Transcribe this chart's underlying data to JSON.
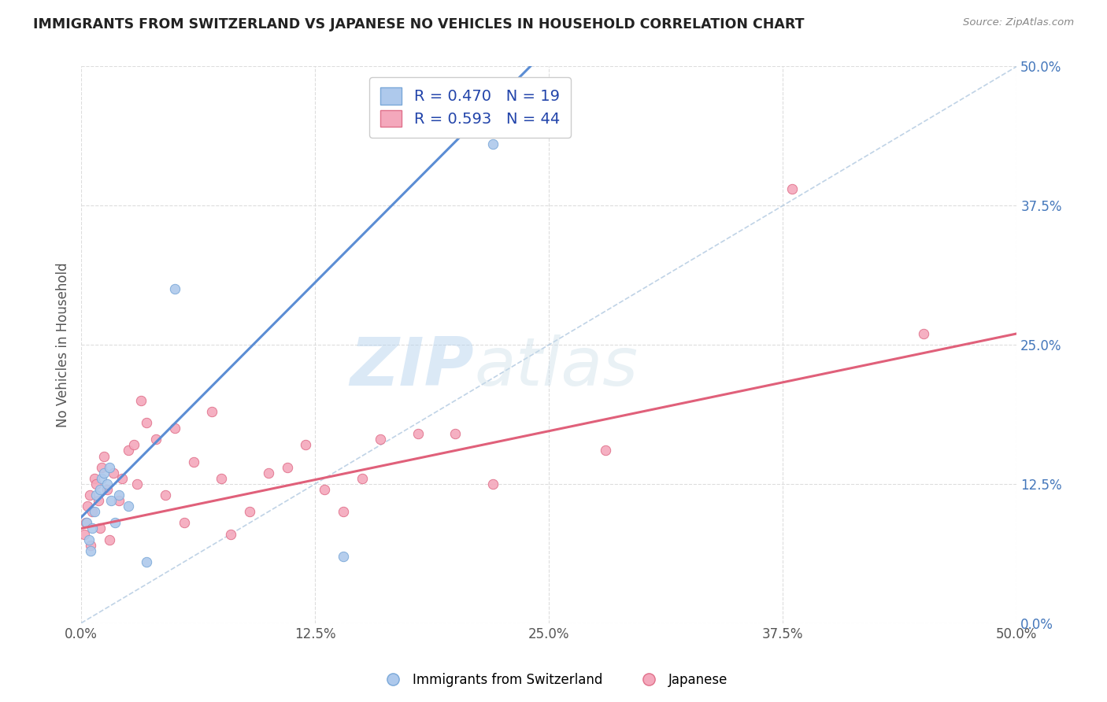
{
  "title": "IMMIGRANTS FROM SWITZERLAND VS JAPANESE NO VEHICLES IN HOUSEHOLD CORRELATION CHART",
  "source": "Source: ZipAtlas.com",
  "ylabel": "No Vehicles in Household",
  "legend_swiss_r": "R = 0.470",
  "legend_swiss_n": "N = 19",
  "legend_japanese_r": "R = 0.593",
  "legend_japanese_n": "N = 44",
  "switzerland_fill": "#aec9ec",
  "switzerland_edge": "#7aa8d8",
  "japanese_fill": "#f4a8bc",
  "japanese_edge": "#e0708a",
  "trendline_swiss_color": "#5b8dd4",
  "trendline_japanese_color": "#e0607a",
  "diagonal_color": "#b0c8e0",
  "swiss_x": [
    0.3,
    0.4,
    0.5,
    0.6,
    0.7,
    0.8,
    1.0,
    1.1,
    1.2,
    1.4,
    1.5,
    1.6,
    1.8,
    2.0,
    2.5,
    3.5,
    5.0,
    14.0,
    22.0
  ],
  "swiss_y": [
    9.0,
    7.5,
    6.5,
    8.5,
    10.0,
    11.5,
    12.0,
    13.0,
    13.5,
    12.5,
    14.0,
    11.0,
    9.0,
    11.5,
    10.5,
    5.5,
    30.0,
    6.0,
    43.0
  ],
  "japanese_x": [
    0.15,
    0.25,
    0.35,
    0.45,
    0.5,
    0.6,
    0.7,
    0.8,
    0.9,
    1.0,
    1.1,
    1.2,
    1.4,
    1.5,
    1.7,
    2.0,
    2.2,
    2.5,
    2.8,
    3.0,
    3.2,
    3.5,
    4.0,
    4.5,
    5.0,
    5.5,
    6.0,
    7.0,
    7.5,
    8.0,
    9.0,
    10.0,
    11.0,
    12.0,
    13.0,
    14.0,
    15.0,
    16.0,
    18.0,
    20.0,
    22.0,
    28.0,
    38.0,
    45.0
  ],
  "japanese_y": [
    8.0,
    9.0,
    10.5,
    11.5,
    7.0,
    10.0,
    13.0,
    12.5,
    11.0,
    8.5,
    14.0,
    15.0,
    12.0,
    7.5,
    13.5,
    11.0,
    13.0,
    15.5,
    16.0,
    12.5,
    20.0,
    18.0,
    16.5,
    11.5,
    17.5,
    9.0,
    14.5,
    19.0,
    13.0,
    8.0,
    10.0,
    13.5,
    14.0,
    16.0,
    12.0,
    10.0,
    13.0,
    16.5,
    17.0,
    17.0,
    12.5,
    15.5,
    39.0,
    26.0
  ],
  "swiss_trend_x0": 0.0,
  "swiss_trend_y0": 9.5,
  "swiss_trend_x1": 24.0,
  "swiss_trend_y1": 50.0,
  "japanese_trend_x0": 0.0,
  "japanese_trend_y0": 8.5,
  "japanese_trend_x1": 50.0,
  "japanese_trend_y1": 26.0,
  "xlim": [
    0,
    50
  ],
  "ylim": [
    0,
    50
  ],
  "xtick_vals": [
    0,
    12.5,
    25.0,
    37.5,
    50.0
  ],
  "ytick_vals": [
    0,
    12.5,
    25.0,
    37.5,
    50.0
  ],
  "background_color": "#ffffff",
  "plot_bg_color": "#ffffff"
}
